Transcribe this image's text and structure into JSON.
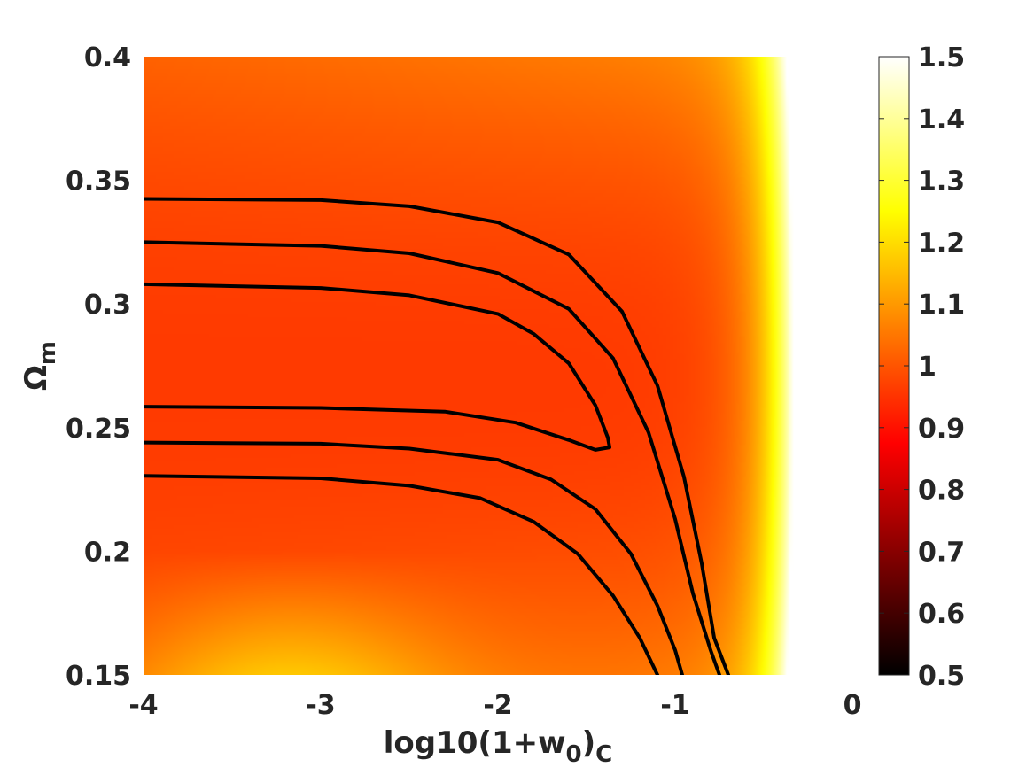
{
  "chart_data": {
    "type": "heatmap",
    "title": "",
    "xlabel": {
      "main": "log10(1+w",
      "sub1": "0",
      "mid": ")",
      "sub2": "C"
    },
    "ylabel": {
      "main": "Ω",
      "sub": "m"
    },
    "xlim": [
      -4,
      0
    ],
    "ylim": [
      0.15,
      0.4
    ],
    "x_ticks": [
      "-4",
      "-3",
      "-2",
      "-1",
      "0"
    ],
    "x_tick_values": [
      -4,
      -3,
      -2,
      -1,
      0
    ],
    "y_ticks": [
      "0.15",
      "0.2",
      "0.25",
      "0.3",
      "0.35",
      "0.4"
    ],
    "y_tick_values": [
      0.15,
      0.2,
      0.25,
      0.3,
      0.35,
      0.4
    ],
    "colorbar": {
      "range": [
        0.5,
        1.5
      ],
      "ticks": [
        "0.5",
        "0.6",
        "0.7",
        "0.8",
        "0.9",
        "1",
        "1.1",
        "1.2",
        "1.3",
        "1.4",
        "1.5"
      ],
      "tick_values": [
        0.5,
        0.6,
        0.7,
        0.8,
        0.9,
        1.0,
        1.1,
        1.2,
        1.3,
        1.4,
        1.5
      ],
      "colormap": "hot"
    },
    "field_samples": {
      "description_points": [
        {
          "x": -4,
          "y": 0.4,
          "value": 1.05
        },
        {
          "x": -4,
          "y": 0.28,
          "value": 0.95
        },
        {
          "x": -4,
          "y": 0.15,
          "value": 1.22
        },
        {
          "x": -2,
          "y": 0.28,
          "value": 0.96
        },
        {
          "x": -1,
          "y": 0.4,
          "value": 1.25
        },
        {
          "x": -0.5,
          "y": 0.3,
          "value": 1.45
        },
        {
          "x": -0.3,
          "y": 0.2,
          "value": 1.5
        }
      ]
    },
    "contours": [
      {
        "name": "",
        "points": [
          [
            -4,
            0.3425
          ],
          [
            -3,
            0.342
          ],
          [
            -2.5,
            0.3395
          ],
          [
            -2,
            0.333
          ],
          [
            -1.6,
            0.32
          ],
          [
            -1.3,
            0.297
          ],
          [
            -1.1,
            0.267
          ],
          [
            -0.95,
            0.23
          ],
          [
            -0.85,
            0.195
          ],
          [
            -0.78,
            0.165
          ],
          [
            -0.7,
            0.15
          ]
        ]
      },
      {
        "name": "",
        "points": [
          [
            -4,
            0.325
          ],
          [
            -3,
            0.3235
          ],
          [
            -2.5,
            0.3205
          ],
          [
            -2,
            0.3125
          ],
          [
            -1.6,
            0.298
          ],
          [
            -1.35,
            0.278
          ],
          [
            -1.15,
            0.248
          ],
          [
            -1.0,
            0.213
          ],
          [
            -0.9,
            0.183
          ],
          [
            -0.8,
            0.16
          ],
          [
            -0.75,
            0.15
          ]
        ]
      },
      {
        "name": "",
        "points": [
          [
            -4,
            0.308
          ],
          [
            -3,
            0.3065
          ],
          [
            -2.5,
            0.3035
          ],
          [
            -2,
            0.296
          ],
          [
            -1.8,
            0.288
          ],
          [
            -1.6,
            0.276
          ],
          [
            -1.45,
            0.259
          ],
          [
            -1.38,
            0.246
          ],
          [
            -1.37,
            0.242
          ],
          [
            -1.45,
            0.241
          ],
          [
            -1.6,
            0.245
          ],
          [
            -1.9,
            0.252
          ],
          [
            -2.3,
            0.2565
          ],
          [
            -3,
            0.258
          ],
          [
            -4,
            0.2585
          ]
        ]
      },
      {
        "name": "",
        "points": [
          [
            -4,
            0.244
          ],
          [
            -3,
            0.2435
          ],
          [
            -2.5,
            0.2415
          ],
          [
            -2,
            0.237
          ],
          [
            -1.7,
            0.229
          ],
          [
            -1.45,
            0.217
          ],
          [
            -1.25,
            0.199
          ],
          [
            -1.1,
            0.178
          ],
          [
            -1.0,
            0.16
          ],
          [
            -0.96,
            0.15
          ]
        ]
      },
      {
        "name": "",
        "points": [
          [
            -4,
            0.2305
          ],
          [
            -3,
            0.2295
          ],
          [
            -2.5,
            0.2265
          ],
          [
            -2.1,
            0.2215
          ],
          [
            -1.8,
            0.212
          ],
          [
            -1.55,
            0.199
          ],
          [
            -1.35,
            0.182
          ],
          [
            -1.2,
            0.165
          ],
          [
            -1.1,
            0.15
          ]
        ]
      }
    ]
  }
}
